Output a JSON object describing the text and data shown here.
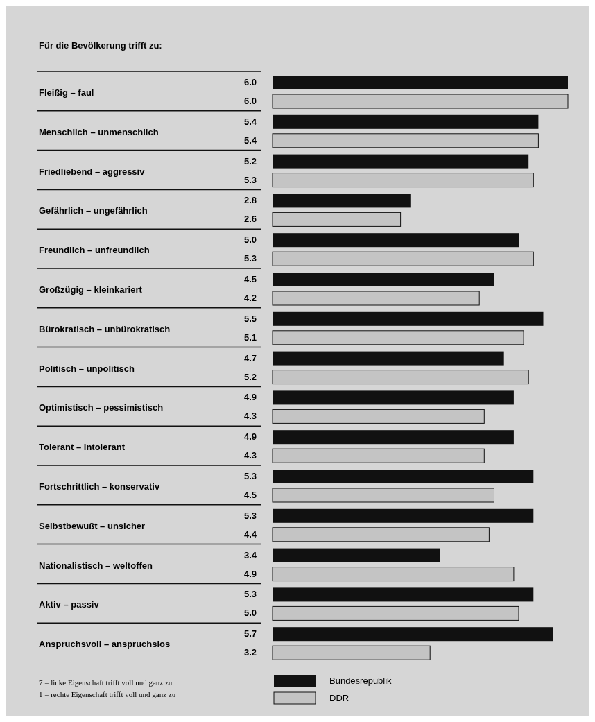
{
  "chart_data": {
    "type": "bar",
    "orientation": "horizontal",
    "title": "Für die Bevölkerung trifft zu:",
    "categories": [
      "Fleißig – faul",
      "Menschlich – unmenschlich",
      "Friedliebend – aggressiv",
      "Gefährlich – ungefährlich",
      "Freundlich – unfreundlich",
      "Großzügig – kleinkariert",
      "Bürokratisch – unbürokratisch",
      "Politisch – unpolitisch",
      "Optimistisch – pessimistisch",
      "Tolerant – intolerant",
      "Fortschrittlich – konservativ",
      "Selbstbewußt – unsicher",
      "Nationalistisch – weltoffen",
      "Aktiv – passiv",
      "Anspruchsvoll – anspruchslos"
    ],
    "series": [
      {
        "name": "Bundesrepublik",
        "color": "#111111",
        "values": [
          6.0,
          5.4,
          5.2,
          2.8,
          5.0,
          4.5,
          5.5,
          4.7,
          4.9,
          4.9,
          5.3,
          5.3,
          3.4,
          5.3,
          5.7
        ],
        "value_labels": [
          "6.0",
          "5.4",
          "5.2",
          "2.8",
          "5.0",
          "4.5",
          "5.5",
          "4.7",
          "4.9",
          "4.9",
          "5.3",
          "5.3",
          "3.4",
          "5.3",
          "5.7"
        ]
      },
      {
        "name": "DDR",
        "color": "#c4c4c4",
        "values": [
          6.0,
          5.4,
          5.3,
          2.6,
          5.3,
          4.2,
          5.1,
          5.2,
          4.3,
          4.3,
          4.5,
          4.4,
          4.9,
          5.0,
          3.2
        ],
        "value_labels": [
          "6.0",
          "5.4",
          "5.3",
          "2.6",
          "5.3",
          "4.2",
          "5.1",
          "5.2",
          "4.3",
          "4.3",
          "4.5",
          "4.4",
          "4.9",
          "5.0",
          "3.2"
        ]
      }
    ],
    "legend": "bottom",
    "annotations": [
      "7 = linke Eigenschaft trifft voll und ganz zu",
      "1 = rechte Eigenschaft trifft voll und ganz zu"
    ]
  }
}
